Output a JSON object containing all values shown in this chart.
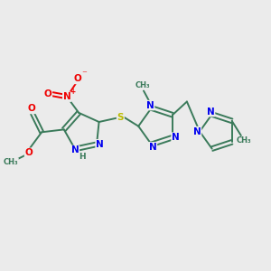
{
  "background_color": "#ebebeb",
  "bond_color": "#3a7a5a",
  "N_color": "#0000ee",
  "O_color": "#ee0000",
  "S_color": "#bbbb00",
  "text_color": "#3a7a5a",
  "figsize": [
    3.0,
    3.0
  ],
  "dpi": 100,
  "xlim": [
    0,
    10
  ],
  "ylim": [
    0,
    10
  ]
}
